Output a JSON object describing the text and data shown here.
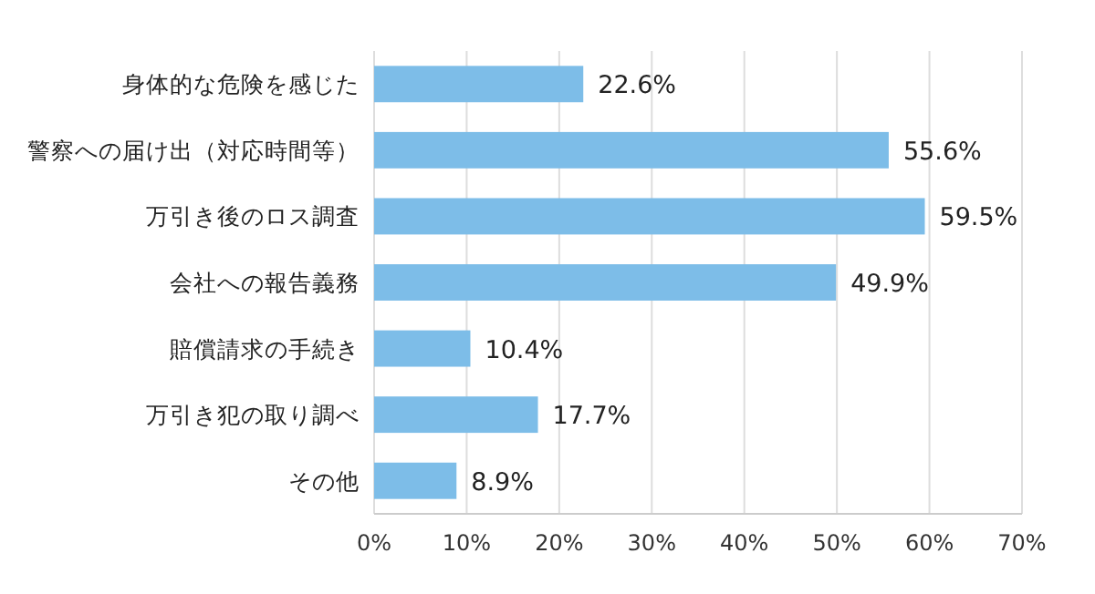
{
  "chart_data": {
    "type": "bar",
    "orientation": "horizontal",
    "categories": [
      "身体的な危険を感じた",
      "警察への届け出（対応時間等）",
      "万引き後のロス調査",
      "会社への報告義務",
      "賠償請求の手続き",
      "万引き犯の取り調べ",
      "その他"
    ],
    "values": [
      22.6,
      55.6,
      59.5,
      49.9,
      10.4,
      17.7,
      8.9
    ],
    "color": "#7dbde8",
    "xlim": [
      0,
      70
    ],
    "xticks": [
      {
        "value": 0,
        "label": "0%"
      },
      {
        "value": 10,
        "label": "10%"
      },
      {
        "value": 20,
        "label": "20%"
      },
      {
        "value": 30,
        "label": "30%"
      },
      {
        "value": 40,
        "label": "40%"
      },
      {
        "value": 50,
        "label": "50%"
      },
      {
        "value": 60,
        "label": "60%"
      },
      {
        "value": 70,
        "label": "70%"
      }
    ],
    "grid": "x",
    "value_labels": [
      "22.6%",
      "55.6%",
      "59.5%",
      "49.9%",
      "10.4%",
      "17.7%",
      "8.9%"
    ]
  }
}
